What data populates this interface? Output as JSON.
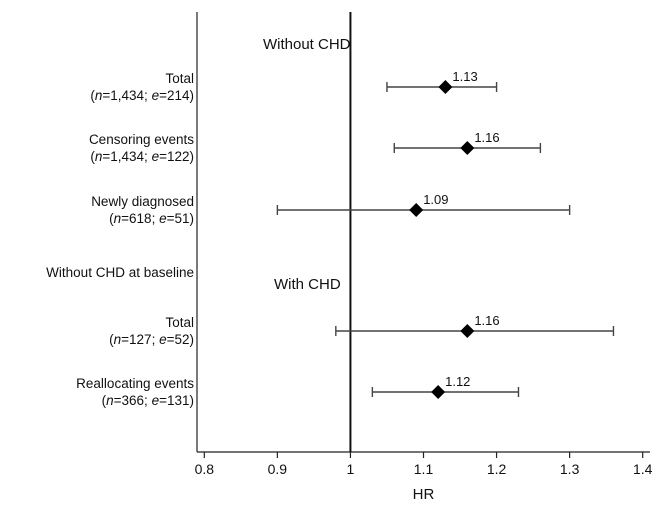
{
  "chart_data": {
    "type": "forest",
    "xlabel": "HR",
    "xlim": [
      0.79,
      1.41
    ],
    "xticks": [
      0.8,
      0.9,
      1,
      1.1,
      1.2,
      1.3,
      1.4
    ],
    "xtick_labels": [
      "0.8",
      "0.9",
      "1",
      "1.1",
      "1.2",
      "1.3",
      "1.4"
    ],
    "reference_line": 1,
    "headers": [
      {
        "id": "without",
        "text": "Without CHD"
      },
      {
        "id": "with",
        "text": "With CHD"
      }
    ],
    "standalone_labels": [
      {
        "id": "baseline",
        "text": "Without CHD at baseline"
      }
    ],
    "rows": [
      {
        "label": "Total",
        "n": "1,434",
        "e": "214",
        "hr": 1.13,
        "hr_label": "1.13",
        "ci": [
          1.05,
          1.2
        ]
      },
      {
        "label": "Censoring events",
        "n": "1,434",
        "e": "122",
        "hr": 1.16,
        "hr_label": "1.16",
        "ci": [
          1.06,
          1.26
        ]
      },
      {
        "label": "Newly diagnosed",
        "n": "618",
        "e": "51",
        "hr": 1.09,
        "hr_label": "1.09",
        "ci": [
          0.9,
          1.3
        ]
      },
      {
        "label": "Total",
        "n": "127",
        "e": "52",
        "hr": 1.16,
        "hr_label": "1.16",
        "ci": [
          0.98,
          1.36
        ]
      },
      {
        "label": "Reallocating events",
        "n": "366",
        "e": "131",
        "hr": 1.12,
        "hr_label": "1.12",
        "ci": [
          1.03,
          1.23
        ]
      }
    ]
  }
}
